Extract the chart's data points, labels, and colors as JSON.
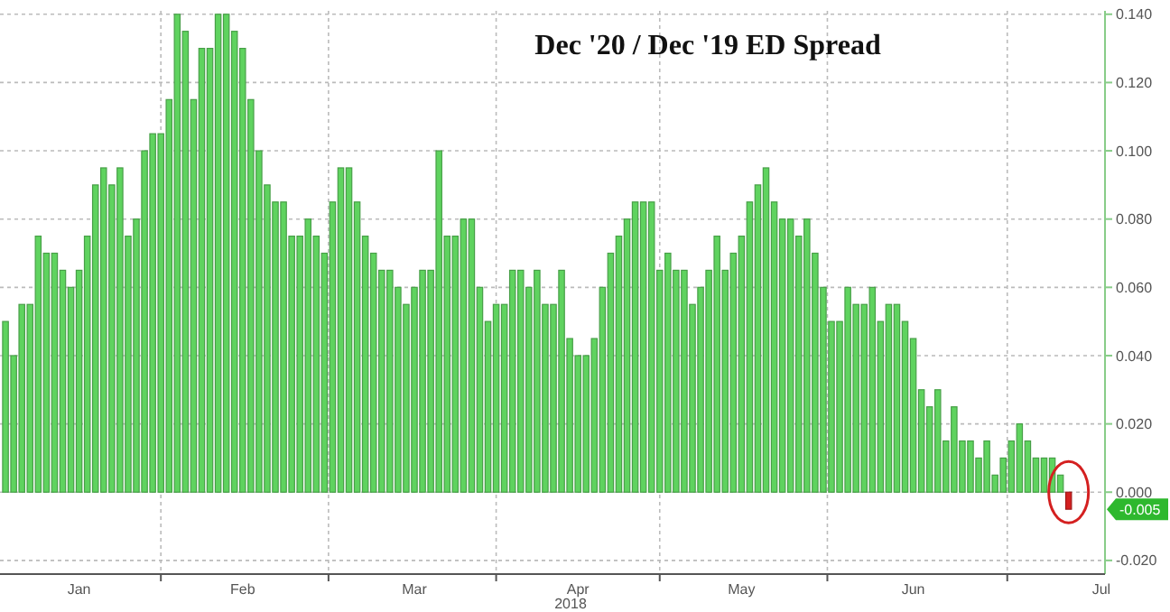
{
  "chart_data": {
    "type": "bar",
    "title": "Dec '20 / Dec '19 ED Spread",
    "xlabel": "2018",
    "categories": [
      null,
      null,
      null,
      null,
      null,
      null,
      null,
      null,
      null,
      "Jan",
      null,
      null,
      null,
      null,
      null,
      null,
      null,
      null,
      null,
      null,
      null,
      null,
      null,
      null,
      null,
      null,
      null,
      null,
      null,
      "Feb",
      null,
      null,
      null,
      null,
      null,
      null,
      null,
      null,
      null,
      null,
      null,
      null,
      null,
      null,
      null,
      null,
      null,
      null,
      null,
      null,
      "Mar",
      null,
      null,
      null,
      null,
      null,
      null,
      null,
      null,
      null,
      null,
      null,
      null,
      null,
      null,
      null,
      null,
      null,
      null,
      null,
      "Apr",
      null,
      null,
      null,
      null,
      null,
      null,
      null,
      null,
      null,
      null,
      null,
      null,
      null,
      null,
      null,
      null,
      null,
      null,
      null,
      "May",
      null,
      null,
      null,
      null,
      null,
      null,
      null,
      null,
      null,
      null,
      null,
      null,
      null,
      null,
      null,
      null,
      null,
      null,
      null,
      null,
      "Jun",
      null,
      null,
      null,
      null,
      null,
      null,
      null,
      null,
      null,
      null,
      null,
      null,
      null,
      null,
      null,
      null,
      null,
      null,
      null,
      null,
      null,
      null,
      "Jul"
    ],
    "values": [
      0.05,
      0.04,
      0.055,
      0.055,
      0.075,
      0.07,
      0.07,
      0.065,
      0.06,
      0.065,
      0.075,
      0.09,
      0.095,
      0.09,
      0.095,
      0.075,
      0.08,
      0.1,
      0.105,
      0.105,
      0.115,
      0.14,
      0.135,
      0.115,
      0.13,
      0.13,
      0.14,
      0.14,
      0.135,
      0.13,
      0.115,
      0.1,
      0.09,
      0.085,
      0.085,
      0.075,
      0.075,
      0.08,
      0.075,
      0.07,
      0.085,
      0.095,
      0.095,
      0.085,
      0.075,
      0.07,
      0.065,
      0.065,
      0.06,
      0.055,
      0.06,
      0.065,
      0.065,
      0.1,
      0.075,
      0.075,
      0.08,
      0.08,
      0.06,
      0.05,
      0.055,
      0.055,
      0.065,
      0.065,
      0.06,
      0.065,
      0.055,
      0.055,
      0.065,
      0.045,
      0.04,
      0.04,
      0.045,
      0.06,
      0.07,
      0.075,
      0.08,
      0.085,
      0.085,
      0.085,
      0.065,
      0.07,
      0.065,
      0.065,
      0.055,
      0.06,
      0.065,
      0.075,
      0.065,
      0.07,
      0.075,
      0.085,
      0.09,
      0.095,
      0.085,
      0.08,
      0.08,
      0.075,
      0.08,
      0.07,
      0.06,
      0.05,
      0.05,
      0.06,
      0.055,
      0.055,
      0.06,
      0.05,
      0.055,
      0.055,
      0.05,
      0.045,
      0.03,
      0.025,
      0.03,
      0.015,
      0.025,
      0.015,
      0.015,
      0.01,
      0.015,
      0.005,
      0.01,
      0.015,
      0.02,
      0.015,
      0.01,
      0.01,
      0.01,
      0.005,
      -0.005,
      null,
      null,
      null,
      null
    ],
    "colors": [
      "#5fd35f",
      "#5fd35f",
      "#5fd35f",
      "#5fd35f",
      "#5fd35f",
      "#5fd35f",
      "#5fd35f",
      "#5fd35f",
      "#5fd35f",
      "#5fd35f",
      "#5fd35f",
      "#5fd35f",
      "#5fd35f",
      "#5fd35f",
      "#5fd35f",
      "#5fd35f",
      "#5fd35f",
      "#5fd35f",
      "#5fd35f",
      "#5fd35f",
      "#5fd35f",
      "#5fd35f",
      "#5fd35f",
      "#5fd35f",
      "#5fd35f",
      "#5fd35f",
      "#5fd35f",
      "#5fd35f",
      "#5fd35f",
      "#5fd35f",
      "#5fd35f",
      "#5fd35f",
      "#5fd35f",
      "#5fd35f",
      "#5fd35f",
      "#5fd35f",
      "#5fd35f",
      "#5fd35f",
      "#5fd35f",
      "#5fd35f",
      "#5fd35f",
      "#5fd35f",
      "#5fd35f",
      "#5fd35f",
      "#5fd35f",
      "#5fd35f",
      "#5fd35f",
      "#5fd35f",
      "#5fd35f",
      "#5fd35f",
      "#5fd35f",
      "#5fd35f",
      "#5fd35f",
      "#5fd35f",
      "#5fd35f",
      "#5fd35f",
      "#5fd35f",
      "#5fd35f",
      "#5fd35f",
      "#5fd35f",
      "#5fd35f",
      "#5fd35f",
      "#5fd35f",
      "#5fd35f",
      "#5fd35f",
      "#5fd35f",
      "#5fd35f",
      "#5fd35f",
      "#5fd35f",
      "#5fd35f",
      "#5fd35f",
      "#5fd35f",
      "#5fd35f",
      "#5fd35f",
      "#5fd35f",
      "#5fd35f",
      "#5fd35f",
      "#5fd35f",
      "#5fd35f",
      "#5fd35f",
      "#5fd35f",
      "#5fd35f",
      "#5fd35f",
      "#5fd35f",
      "#5fd35f",
      "#5fd35f",
      "#5fd35f",
      "#5fd35f",
      "#5fd35f",
      "#5fd35f",
      "#5fd35f",
      "#5fd35f",
      "#5fd35f",
      "#5fd35f",
      "#5fd35f",
      "#5fd35f",
      "#5fd35f",
      "#5fd35f",
      "#5fd35f",
      "#5fd35f",
      "#5fd35f",
      "#5fd35f",
      "#5fd35f",
      "#5fd35f",
      "#5fd35f",
      "#5fd35f",
      "#5fd35f",
      "#5fd35f",
      "#5fd35f",
      "#5fd35f",
      "#5fd35f",
      "#5fd35f",
      "#5fd35f",
      "#5fd35f",
      "#5fd35f",
      "#5fd35f",
      "#5fd35f",
      "#5fd35f",
      "#5fd35f",
      "#5fd35f",
      "#5fd35f",
      "#5fd35f",
      "#5fd35f",
      "#5fd35f",
      "#5fd35f",
      "#5fd35f",
      "#5fd35f",
      "#5fd35f",
      "#5fd35f",
      "#5fd35f",
      "#d42020",
      "#5fd35f",
      "#5fd35f",
      "#5fd35f",
      "#5fd35f"
    ],
    "ylim": [
      -0.024,
      0.141
    ],
    "yticks": [
      {
        "value": 0.14,
        "label": "0.140"
      },
      {
        "value": 0.12,
        "label": "0.120"
      },
      {
        "value": 0.1,
        "label": "0.100"
      },
      {
        "value": 0.08,
        "label": "0.080"
      },
      {
        "value": 0.06,
        "label": "0.060"
      },
      {
        "value": 0.04,
        "label": "0.040"
      },
      {
        "value": 0.02,
        "label": "0.020"
      },
      {
        "value": 0,
        "label": "0.000"
      },
      {
        "value": -0.02,
        "label": "-0.020"
      }
    ],
    "annotations": [
      {
        "text": "-0.005",
        "y": -0.005
      }
    ],
    "grid": true
  }
}
